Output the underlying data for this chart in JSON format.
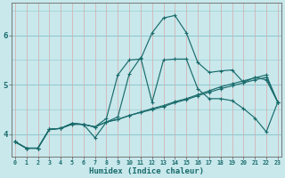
{
  "xlabel": "Humidex (Indice chaleur)",
  "background_color": "#c8e8ec",
  "grid_h_color": "#8cc8cc",
  "grid_v_color": "#d8a8a8",
  "line_color": "#1a6b6b",
  "xlim": [
    -0.3,
    23.3
  ],
  "ylim": [
    3.55,
    6.65
  ],
  "yticks": [
    4,
    5,
    6
  ],
  "xticks": [
    0,
    1,
    2,
    3,
    4,
    5,
    6,
    7,
    8,
    9,
    10,
    11,
    12,
    13,
    14,
    15,
    16,
    17,
    18,
    19,
    20,
    21,
    22,
    23
  ],
  "series": [
    [
      3.85,
      3.72,
      3.72,
      4.1,
      4.12,
      4.2,
      4.2,
      4.15,
      4.32,
      5.2,
      5.5,
      5.52,
      6.05,
      6.35,
      6.4,
      6.05,
      5.45,
      5.25,
      5.28,
      5.3,
      5.05,
      5.15,
      5.1,
      4.65
    ],
    [
      3.85,
      3.72,
      3.72,
      4.1,
      4.12,
      4.22,
      4.2,
      3.93,
      4.25,
      4.35,
      5.22,
      5.55,
      4.65,
      5.5,
      5.52,
      5.52,
      4.92,
      4.72,
      4.72,
      4.68,
      4.52,
      4.33,
      4.05,
      4.65
    ],
    [
      3.85,
      3.72,
      3.72,
      4.1,
      4.12,
      4.22,
      4.2,
      4.15,
      4.25,
      4.3,
      4.38,
      4.44,
      4.5,
      4.56,
      4.64,
      4.7,
      4.78,
      4.85,
      4.92,
      4.98,
      5.04,
      5.1,
      5.15,
      4.65
    ],
    [
      3.85,
      3.72,
      3.72,
      4.1,
      4.12,
      4.22,
      4.2,
      4.15,
      4.25,
      4.3,
      4.38,
      4.45,
      4.52,
      4.58,
      4.66,
      4.72,
      4.8,
      4.88,
      4.96,
      5.02,
      5.08,
      5.14,
      5.2,
      4.65
    ]
  ]
}
